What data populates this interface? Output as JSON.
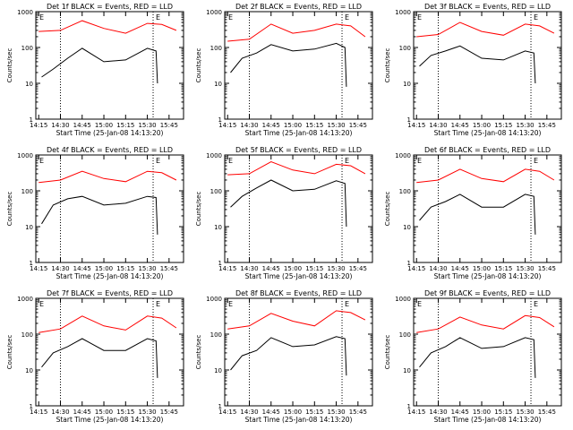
{
  "chart_data": [
    {
      "type": "line",
      "title": "Det 1f BLACK = Events, RED = LLD",
      "ylabel": "Counts/sec",
      "xlabel": "Start Time (25-Jan-08 14:13:20)",
      "x_ticks": [
        "14:15",
        "14:30",
        "14:45",
        "15:00",
        "15:15",
        "15:30",
        "15:45"
      ],
      "y_ticks": [
        "1",
        "10",
        "100",
        "1000"
      ],
      "yscale": "log",
      "ylim": [
        1,
        1000
      ],
      "markers": {
        "E_label": "E",
        "dotted_lines": [
          "14:30",
          "15:34"
        ]
      },
      "series": [
        {
          "color": "#ff0000",
          "x": [
            "14:15",
            "14:30",
            "14:45",
            "15:00",
            "15:15",
            "15:30",
            "15:40",
            "15:50"
          ],
          "values": [
            280,
            300,
            560,
            340,
            250,
            470,
            440,
            300
          ]
        },
        {
          "color": "#000000",
          "x": [
            "14:17",
            "14:25",
            "14:35",
            "14:45",
            "15:00",
            "15:15",
            "15:30",
            "15:36",
            "15:37"
          ],
          "values": [
            15,
            25,
            50,
            95,
            40,
            45,
            95,
            80,
            10
          ]
        }
      ]
    },
    {
      "type": "line",
      "title": "Det 2f BLACK = Events, RED = LLD",
      "ylabel": "Counts/sec",
      "xlabel": "Start Time (25-Jan-08 14:13:20)",
      "x_ticks": [
        "14:15",
        "14:30",
        "14:45",
        "15:00",
        "15:15",
        "15:30",
        "15:45"
      ],
      "y_ticks": [
        "1",
        "10",
        "100",
        "1000"
      ],
      "yscale": "log",
      "ylim": [
        1,
        1000
      ],
      "markers": {
        "E_label": "E",
        "dotted_lines": [
          "14:30",
          "15:34"
        ]
      },
      "series": [
        {
          "color": "#ff0000",
          "x": [
            "14:15",
            "14:30",
            "14:45",
            "15:00",
            "15:15",
            "15:30",
            "15:40",
            "15:50"
          ],
          "values": [
            150,
            170,
            450,
            250,
            300,
            450,
            400,
            200
          ]
        },
        {
          "color": "#000000",
          "x": [
            "14:17",
            "14:25",
            "14:35",
            "14:45",
            "15:00",
            "15:15",
            "15:30",
            "15:36",
            "15:37"
          ],
          "values": [
            20,
            50,
            70,
            120,
            80,
            90,
            130,
            100,
            8
          ]
        }
      ]
    },
    {
      "type": "line",
      "title": "Det 3f BLACK = Events, RED = LLD",
      "ylabel": "Counts/sec",
      "xlabel": "Start Time (25-Jan-08 14:13:20)",
      "x_ticks": [
        "14:15",
        "14:30",
        "14:45",
        "15:00",
        "15:15",
        "15:30",
        "15:45"
      ],
      "y_ticks": [
        "1",
        "10",
        "100",
        "1000"
      ],
      "yscale": "log",
      "ylim": [
        1,
        1000
      ],
      "markers": {
        "E_label": "E",
        "dotted_lines": [
          "14:30",
          "15:34"
        ]
      },
      "series": [
        {
          "color": "#ff0000",
          "x": [
            "14:15",
            "14:30",
            "14:45",
            "15:00",
            "15:15",
            "15:30",
            "15:40",
            "15:50"
          ],
          "values": [
            200,
            230,
            500,
            280,
            220,
            450,
            400,
            250
          ]
        },
        {
          "color": "#000000",
          "x": [
            "14:17",
            "14:25",
            "14:35",
            "14:45",
            "15:00",
            "15:15",
            "15:30",
            "15:36",
            "15:37"
          ],
          "values": [
            30,
            60,
            80,
            110,
            50,
            45,
            80,
            70,
            10
          ]
        }
      ]
    },
    {
      "type": "line",
      "title": "Det 4f BLACK = Events, RED = LLD",
      "ylabel": "Counts/sec",
      "xlabel": "Start Time (25-Jan-08 14:13:20)",
      "x_ticks": [
        "14:15",
        "14:30",
        "14:45",
        "15:00",
        "15:15",
        "15:30",
        "15:45"
      ],
      "y_ticks": [
        "1",
        "10",
        "100",
        "1000"
      ],
      "yscale": "log",
      "ylim": [
        1,
        1000
      ],
      "markers": {
        "E_label": "E",
        "dotted_lines": [
          "14:30",
          "15:34"
        ]
      },
      "series": [
        {
          "color": "#ff0000",
          "x": [
            "14:15",
            "14:30",
            "14:45",
            "15:00",
            "15:15",
            "15:30",
            "15:40",
            "15:50"
          ],
          "values": [
            170,
            200,
            350,
            220,
            180,
            350,
            320,
            200
          ]
        },
        {
          "color": "#000000",
          "x": [
            "14:17",
            "14:25",
            "14:35",
            "14:45",
            "15:00",
            "15:15",
            "15:30",
            "15:36",
            "15:37"
          ],
          "values": [
            12,
            40,
            60,
            70,
            40,
            45,
            70,
            65,
            6
          ]
        }
      ]
    },
    {
      "type": "line",
      "title": "Det 5f BLACK = Events, RED = LLD",
      "ylabel": "Counts/sec",
      "xlabel": "Start Time (25-Jan-08 14:13:20)",
      "x_ticks": [
        "14:15",
        "14:30",
        "14:45",
        "15:00",
        "15:15",
        "15:30",
        "15:45"
      ],
      "y_ticks": [
        "1",
        "10",
        "100",
        "1000"
      ],
      "yscale": "log",
      "ylim": [
        1,
        1000
      ],
      "markers": {
        "E_label": "E",
        "dotted_lines": [
          "14:30",
          "15:34"
        ]
      },
      "series": [
        {
          "color": "#ff0000",
          "x": [
            "14:15",
            "14:30",
            "14:45",
            "15:00",
            "15:15",
            "15:30",
            "15:40",
            "15:50"
          ],
          "values": [
            280,
            300,
            650,
            380,
            300,
            550,
            500,
            300
          ]
        },
        {
          "color": "#000000",
          "x": [
            "14:17",
            "14:25",
            "14:35",
            "14:45",
            "15:00",
            "15:15",
            "15:30",
            "15:36",
            "15:37"
          ],
          "values": [
            35,
            70,
            120,
            200,
            100,
            110,
            190,
            160,
            10
          ]
        }
      ]
    },
    {
      "type": "line",
      "title": "Det 6f BLACK = Events, RED = LLD",
      "ylabel": "Counts/sec",
      "xlabel": "Start Time (25-Jan-08 14:13:20)",
      "x_ticks": [
        "14:15",
        "14:30",
        "14:45",
        "15:00",
        "15:15",
        "15:30",
        "15:45"
      ],
      "y_ticks": [
        "1",
        "10",
        "100",
        "1000"
      ],
      "yscale": "log",
      "ylim": [
        1,
        1000
      ],
      "markers": {
        "E_label": "E",
        "dotted_lines": [
          "14:30",
          "15:34"
        ]
      },
      "series": [
        {
          "color": "#ff0000",
          "x": [
            "14:15",
            "14:30",
            "14:45",
            "15:00",
            "15:15",
            "15:30",
            "15:40",
            "15:50"
          ],
          "values": [
            170,
            200,
            400,
            220,
            180,
            400,
            350,
            200
          ]
        },
        {
          "color": "#000000",
          "x": [
            "14:17",
            "14:25",
            "14:35",
            "14:45",
            "15:00",
            "15:15",
            "15:30",
            "15:36",
            "15:37"
          ],
          "values": [
            15,
            35,
            50,
            80,
            35,
            35,
            80,
            70,
            6
          ]
        }
      ]
    },
    {
      "type": "line",
      "title": "Det 7f BLACK = Events, RED = LLD",
      "ylabel": "Counts/sec",
      "xlabel": "Start Time (25-Jan-08 14:13:20)",
      "x_ticks": [
        "14:15",
        "14:30",
        "14:45",
        "15:00",
        "15:15",
        "15:30",
        "15:45"
      ],
      "y_ticks": [
        "1",
        "10",
        "100",
        "1000"
      ],
      "yscale": "log",
      "ylim": [
        1,
        1000
      ],
      "markers": {
        "E_label": "E",
        "dotted_lines": [
          "14:30",
          "15:34"
        ]
      },
      "series": [
        {
          "color": "#ff0000",
          "x": [
            "14:15",
            "14:30",
            "14:45",
            "15:00",
            "15:15",
            "15:30",
            "15:40",
            "15:50"
          ],
          "values": [
            110,
            140,
            320,
            170,
            130,
            320,
            280,
            150
          ]
        },
        {
          "color": "#000000",
          "x": [
            "14:17",
            "14:25",
            "14:35",
            "14:45",
            "15:00",
            "15:15",
            "15:30",
            "15:36",
            "15:37"
          ],
          "values": [
            12,
            30,
            45,
            75,
            35,
            35,
            75,
            65,
            6
          ]
        }
      ]
    },
    {
      "type": "line",
      "title": "Det 8f BLACK = Events, RED = LLD",
      "ylabel": "Counts/sec",
      "xlabel": "Start Time (25-Jan-08 14:13:20)",
      "x_ticks": [
        "14:15",
        "14:30",
        "14:45",
        "15:00",
        "15:15",
        "15:30",
        "15:45"
      ],
      "y_ticks": [
        "1",
        "10",
        "100",
        "1000"
      ],
      "yscale": "log",
      "ylim": [
        1,
        1000
      ],
      "markers": {
        "E_label": "E",
        "dotted_lines": [
          "14:30",
          "15:34"
        ]
      },
      "series": [
        {
          "color": "#ff0000",
          "x": [
            "14:15",
            "14:30",
            "14:45",
            "15:00",
            "15:15",
            "15:30",
            "15:40",
            "15:50"
          ],
          "values": [
            140,
            170,
            380,
            230,
            170,
            450,
            400,
            250
          ]
        },
        {
          "color": "#000000",
          "x": [
            "14:17",
            "14:25",
            "14:35",
            "14:45",
            "15:00",
            "15:15",
            "15:30",
            "15:36",
            "15:37"
          ],
          "values": [
            10,
            25,
            35,
            80,
            45,
            50,
            85,
            75,
            7
          ]
        }
      ]
    },
    {
      "type": "line",
      "title": "Det 9f BLACK = Events, RED = LLD",
      "ylabel": "Counts/sec",
      "xlabel": "Start Time (25-Jan-08 14:13:20)",
      "x_ticks": [
        "14:15",
        "14:30",
        "14:45",
        "15:00",
        "15:15",
        "15:30",
        "15:45"
      ],
      "y_ticks": [
        "1",
        "10",
        "100",
        "1000"
      ],
      "yscale": "log",
      "ylim": [
        1,
        1000
      ],
      "markers": {
        "E_label": "E",
        "dotted_lines": [
          "14:30",
          "15:34"
        ]
      },
      "series": [
        {
          "color": "#ff0000",
          "x": [
            "14:15",
            "14:30",
            "14:45",
            "15:00",
            "15:15",
            "15:30",
            "15:40",
            "15:50"
          ],
          "values": [
            110,
            140,
            300,
            180,
            140,
            330,
            290,
            160
          ]
        },
        {
          "color": "#000000",
          "x": [
            "14:17",
            "14:25",
            "14:35",
            "14:45",
            "15:00",
            "15:15",
            "15:30",
            "15:36",
            "15:37"
          ],
          "values": [
            12,
            30,
            45,
            80,
            40,
            45,
            80,
            70,
            6
          ]
        }
      ]
    }
  ]
}
